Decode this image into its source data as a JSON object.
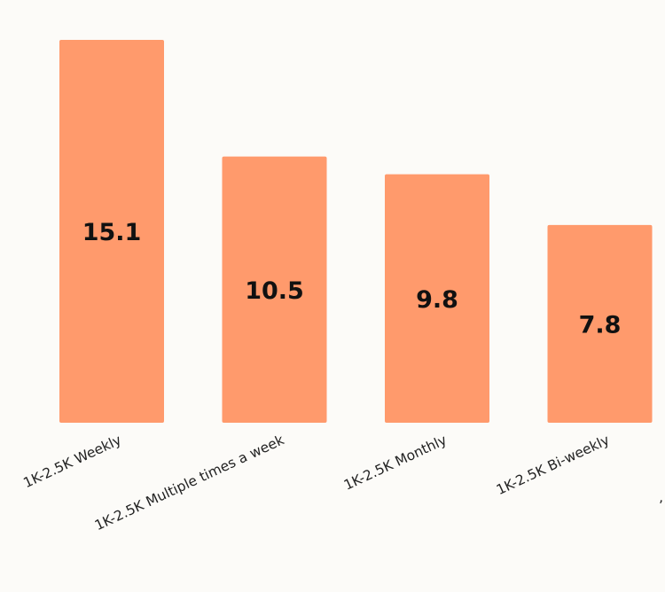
{
  "chart_data": {
    "type": "bar",
    "categories": [
      "1K-2.5K Weekly",
      "1K-2.5K Multiple times a week",
      "1K-2.5K Monthly",
      "1K-2.5K Bi-weekly"
    ],
    "values": [
      15.1,
      10.5,
      9.8,
      7.8
    ],
    "title": "",
    "xlabel": "",
    "ylabel": "",
    "ylim": [
      0,
      15.1
    ],
    "grid": false,
    "bar_color": "#ff9a6c",
    "background": "#fcfbf8"
  }
}
